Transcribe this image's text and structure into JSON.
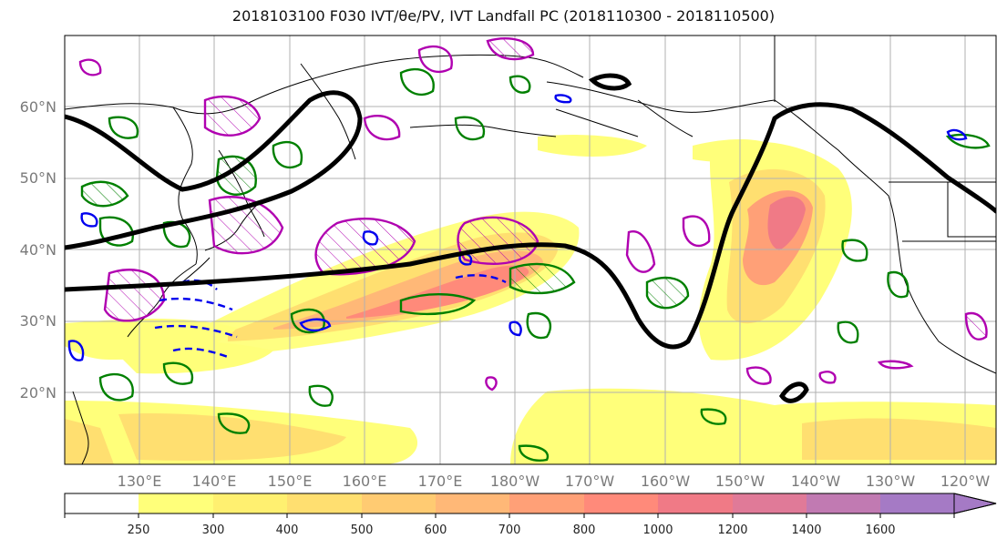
{
  "title": "2018103100 F030 IVT/θe/PV, IVT Landfall PC (2018110300 - 2018110500)",
  "map": {
    "projection": "equirectangular",
    "lon_range": [
      120,
      244
    ],
    "lat_range": [
      10,
      70
    ],
    "lat_ticks": [
      {
        "lat": 20,
        "label": "20°N"
      },
      {
        "lat": 30,
        "label": "30°N"
      },
      {
        "lat": 40,
        "label": "40°N"
      },
      {
        "lat": 50,
        "label": "50°N"
      },
      {
        "lat": 60,
        "label": "60°N"
      }
    ],
    "lon_ticks": [
      {
        "lon": 130,
        "label": "130°E"
      },
      {
        "lon": 140,
        "label": "140°E"
      },
      {
        "lon": 150,
        "label": "150°E"
      },
      {
        "lon": 160,
        "label": "160°E"
      },
      {
        "lon": 170,
        "label": "170°E"
      },
      {
        "lon": 180,
        "label": "180°W"
      },
      {
        "lon": 190,
        "label": "170°W"
      },
      {
        "lon": 200,
        "label": "160°W"
      },
      {
        "lon": 210,
        "label": "150°W"
      },
      {
        "lon": 220,
        "label": "140°W"
      },
      {
        "lon": 230,
        "label": "130°W"
      },
      {
        "lon": 240,
        "label": "120°W"
      }
    ],
    "grid": true
  },
  "colorbar": {
    "extend": "max",
    "levels": [
      {
        "value": "250",
        "color": "#ffff7a"
      },
      {
        "value": "300",
        "color": "#fff070"
      },
      {
        "value": "400",
        "color": "#ffdf70"
      },
      {
        "value": "500",
        "color": "#ffcb72"
      },
      {
        "value": "600",
        "color": "#ffb877"
      },
      {
        "value": "700",
        "color": "#ffa077"
      },
      {
        "value": "800",
        "color": "#ff8a7a"
      },
      {
        "value": "1000",
        "color": "#f07a86"
      },
      {
        "value": "1200",
        "color": "#e07a98"
      },
      {
        "value": "1400",
        "color": "#c17ab2"
      },
      {
        "value": "1600",
        "color": "#a57ac5"
      }
    ]
  },
  "colors": {
    "landfall_pc": "#000000",
    "theta_e": "#008000",
    "pv_positive": "#b000b0",
    "pv_negative": "#0000ee",
    "coastline": "#000000"
  }
}
